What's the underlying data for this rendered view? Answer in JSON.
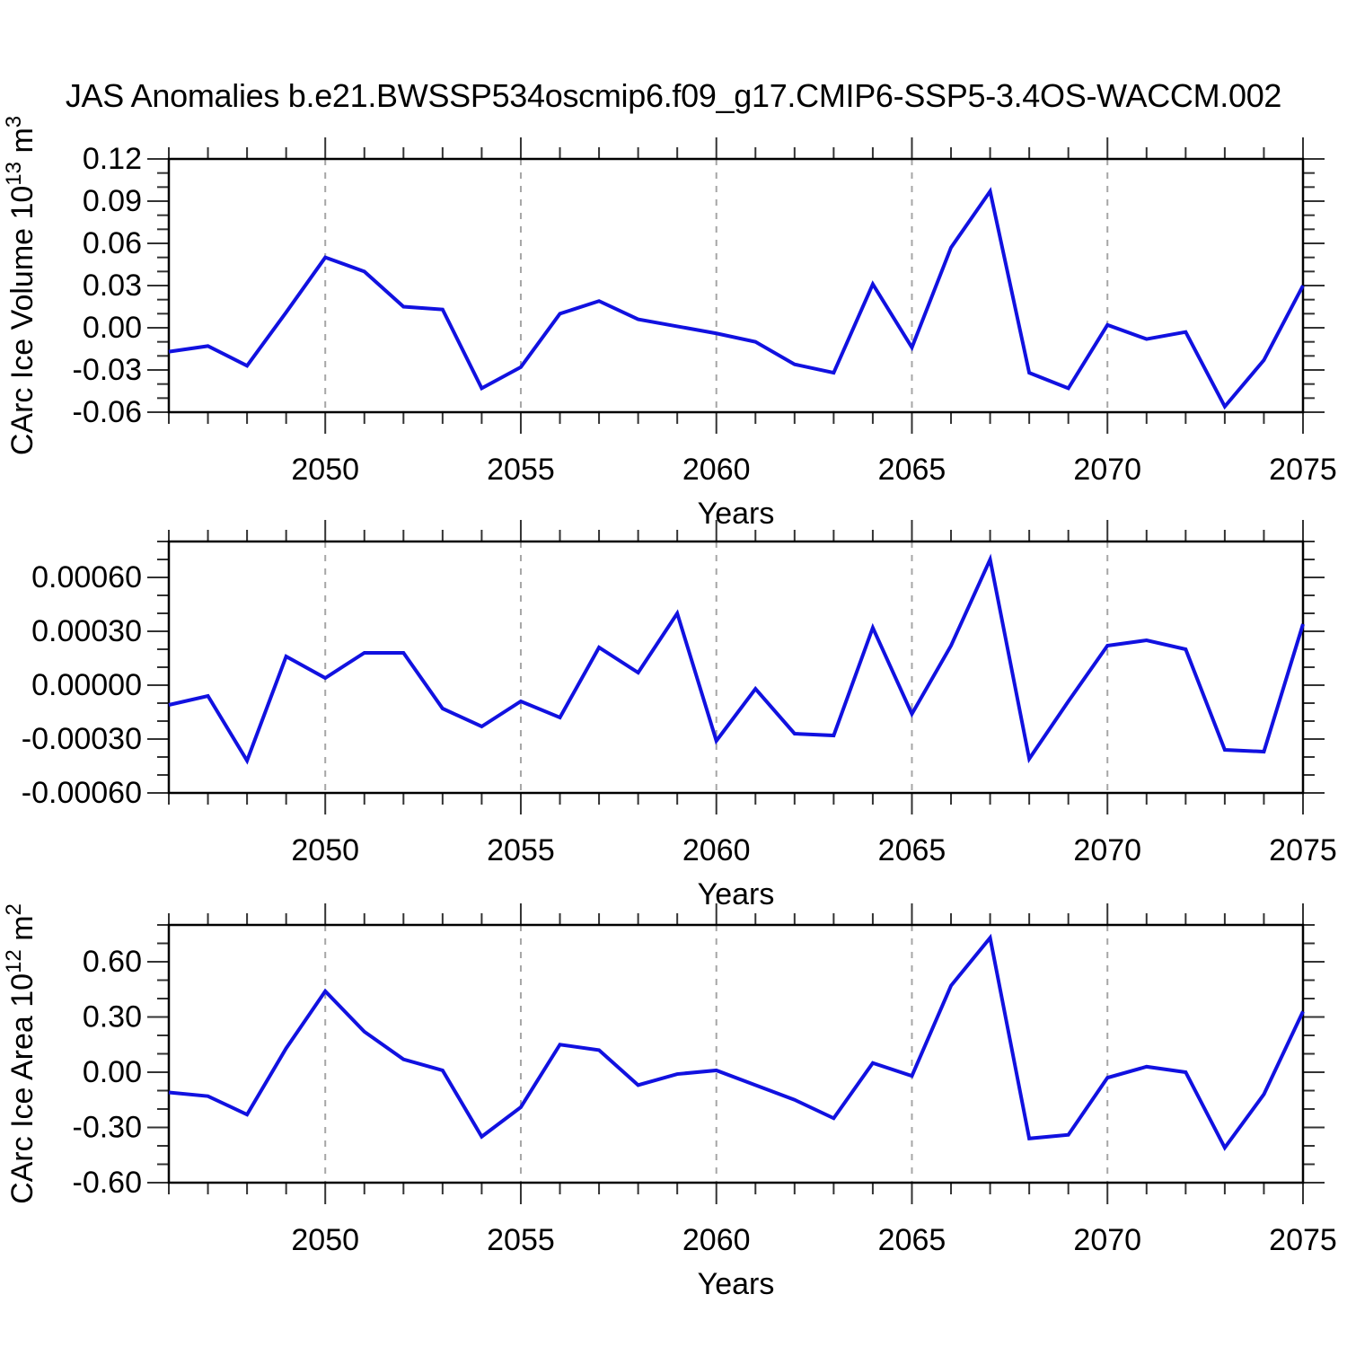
{
  "title": "JAS Anomalies b.e21.BWSSP534oscmip6.f09_g17.CMIP6-SSP5-3.4OS-WACCM.002",
  "colors": {
    "line": "#1111e0",
    "frame": "#000000",
    "tick": "#333333",
    "gridline": "#a6a6a6",
    "text": "#000000",
    "background": "#ffffff"
  },
  "chart_data": [
    {
      "type": "line",
      "name": "ice-volume",
      "ylabel_text": "CArc Ice Volume 10^13 m^3",
      "ylabel_parts": [
        {
          "t": "CArc Ice Volume 10"
        },
        {
          "t": "13",
          "sup": true
        },
        {
          "t": " m"
        },
        {
          "t": "3",
          "sup": true
        }
      ],
      "xlabel": "Years",
      "xlim": [
        2046,
        2075
      ],
      "ylim": [
        -0.06,
        0.12
      ],
      "ytick_values": [
        0.12,
        0.09,
        0.06,
        0.03,
        0.0,
        -0.03,
        -0.06
      ],
      "ytick_labels": [
        "0.12",
        "0.09",
        "0.06",
        "0.03",
        "0.00",
        "-0.03",
        "-0.06"
      ],
      "ytick_minor_step": 0.01,
      "xtick_major": [
        2050,
        2055,
        2060,
        2065,
        2070,
        2075
      ],
      "xtick_labels": [
        "2050",
        "2055",
        "2060",
        "2065",
        "2070",
        "2075"
      ],
      "xtick_minor_step": 1,
      "gridlines_x": [
        2050,
        2055,
        2060,
        2065,
        2070
      ],
      "grid": "vertical-dashed",
      "legend": "none",
      "x": [
        2046,
        2047,
        2048,
        2049,
        2050,
        2051,
        2052,
        2053,
        2054,
        2055,
        2056,
        2057,
        2058,
        2059,
        2060,
        2061,
        2062,
        2063,
        2064,
        2065,
        2066,
        2067,
        2068,
        2069,
        2070,
        2071,
        2072,
        2073,
        2074,
        2075
      ],
      "values": [
        -0.017,
        -0.013,
        -0.027,
        0.011,
        0.05,
        0.04,
        0.015,
        0.013,
        -0.043,
        -0.028,
        0.01,
        0.019,
        0.006,
        0.001,
        -0.004,
        -0.01,
        -0.026,
        -0.032,
        0.031,
        -0.014,
        0.057,
        0.097,
        -0.032,
        -0.043,
        0.002,
        -0.008,
        -0.003,
        -0.056,
        -0.023,
        0.03
      ]
    },
    {
      "type": "line",
      "name": "middle-series",
      "ylabel_text": null,
      "ylabel_parts": null,
      "xlabel": "Years",
      "xlim": [
        2046,
        2075
      ],
      "ylim": [
        -0.0006,
        0.0008
      ],
      "ytick_values": [
        0.0006,
        0.0003,
        0.0,
        -0.0003,
        -0.0006
      ],
      "ytick_labels": [
        "0.00060",
        "0.00030",
        "0.00000",
        "-0.00030",
        "-0.00060"
      ],
      "ytick_minor_step": 0.0001,
      "xtick_major": [
        2050,
        2055,
        2060,
        2065,
        2070,
        2075
      ],
      "xtick_labels": [
        "2050",
        "2055",
        "2060",
        "2065",
        "2070",
        "2075"
      ],
      "xtick_minor_step": 1,
      "gridlines_x": [
        2050,
        2055,
        2060,
        2065,
        2070
      ],
      "grid": "vertical-dashed",
      "legend": "none",
      "x": [
        2046,
        2047,
        2048,
        2049,
        2050,
        2051,
        2052,
        2053,
        2054,
        2055,
        2056,
        2057,
        2058,
        2059,
        2060,
        2061,
        2062,
        2063,
        2064,
        2065,
        2066,
        2067,
        2068,
        2069,
        2070,
        2071,
        2072,
        2073,
        2074,
        2075
      ],
      "values": [
        -0.00011,
        -6e-05,
        -0.00042,
        0.00016,
        4e-05,
        0.00018,
        0.00018,
        -0.00013,
        -0.00023,
        -9e-05,
        -0.00018,
        0.00021,
        7e-05,
        0.0004,
        -0.00031,
        -2e-05,
        -0.00027,
        -0.00028,
        0.00032,
        -0.00016,
        0.00022,
        0.0007,
        -0.00041,
        -9e-05,
        0.00022,
        0.00025,
        0.0002,
        -0.00036,
        -0.00037,
        0.00034
      ]
    },
    {
      "type": "line",
      "name": "ice-area",
      "ylabel_text": "CArc Ice Area 10^12 m^2",
      "ylabel_parts": [
        {
          "t": "CArc Ice Area 10"
        },
        {
          "t": "12",
          "sup": true
        },
        {
          "t": " m"
        },
        {
          "t": "2",
          "sup": true
        }
      ],
      "xlabel": "Years",
      "xlim": [
        2046,
        2075
      ],
      "ylim": [
        -0.6,
        0.8
      ],
      "ytick_values": [
        0.6,
        0.3,
        0.0,
        -0.3,
        -0.6
      ],
      "ytick_labels": [
        "0.60",
        "0.30",
        "0.00",
        "-0.30",
        "-0.60"
      ],
      "ytick_minor_step": 0.1,
      "xtick_major": [
        2050,
        2055,
        2060,
        2065,
        2070,
        2075
      ],
      "xtick_labels": [
        "2050",
        "2055",
        "2060",
        "2065",
        "2070",
        "2075"
      ],
      "xtick_minor_step": 1,
      "gridlines_x": [
        2050,
        2055,
        2060,
        2065,
        2070
      ],
      "grid": "vertical-dashed",
      "legend": "none",
      "x": [
        2046,
        2047,
        2048,
        2049,
        2050,
        2051,
        2052,
        2053,
        2054,
        2055,
        2056,
        2057,
        2058,
        2059,
        2060,
        2061,
        2062,
        2063,
        2064,
        2065,
        2066,
        2067,
        2068,
        2069,
        2070,
        2071,
        2072,
        2073,
        2074,
        2075
      ],
      "values": [
        -0.11,
        -0.13,
        -0.23,
        0.13,
        0.44,
        0.22,
        0.07,
        0.01,
        -0.35,
        -0.19,
        0.15,
        0.12,
        -0.07,
        -0.01,
        0.01,
        -0.07,
        -0.15,
        -0.25,
        0.05,
        -0.02,
        0.47,
        0.73,
        -0.36,
        -0.34,
        -0.03,
        0.03,
        0.0,
        -0.41,
        -0.12,
        0.33
      ]
    }
  ]
}
